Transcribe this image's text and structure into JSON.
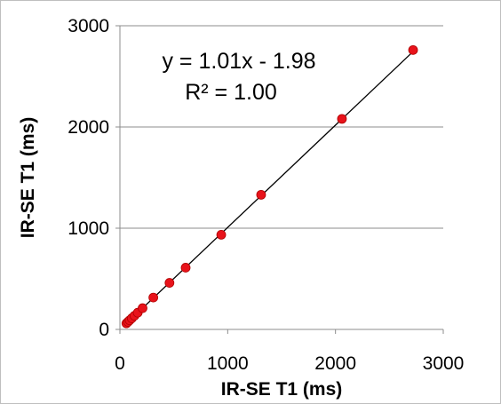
{
  "chart_data": {
    "type": "scatter",
    "title": "",
    "xlabel": "IR-SE  T1 (ms)",
    "ylabel": "IR-SE  T1 (ms)",
    "xlim": [
      0,
      3000
    ],
    "ylim": [
      0,
      3000
    ],
    "xticks": [
      0,
      1000,
      2000,
      3000
    ],
    "yticks": [
      0,
      1000,
      2000,
      3000
    ],
    "xtick_labels": [
      "0",
      "1000",
      "2000",
      "3000"
    ],
    "ytick_labels": [
      "0",
      "1000",
      "2000",
      "3000"
    ],
    "grid": "horizontal",
    "legend": "none",
    "marker_color": "#e8131b",
    "marker_edge_color": "#b00000",
    "line_color": "#000000",
    "series": [
      {
        "x": [
          60,
          75,
          90,
          110,
          135,
          165,
          210,
          310,
          460,
          610,
          940,
          1310,
          2060,
          2720
        ],
        "y": [
          60,
          75,
          90,
          110,
          135,
          165,
          210,
          315,
          460,
          610,
          935,
          1330,
          2080,
          2760
        ]
      }
    ],
    "trendline": {
      "slope": 1.01,
      "intercept": -1.98,
      "x_range": [
        50,
        2720
      ]
    },
    "annotations": {
      "equation": "y = 1.01x - 1.98",
      "r_squared": "R² = 1.00"
    }
  }
}
